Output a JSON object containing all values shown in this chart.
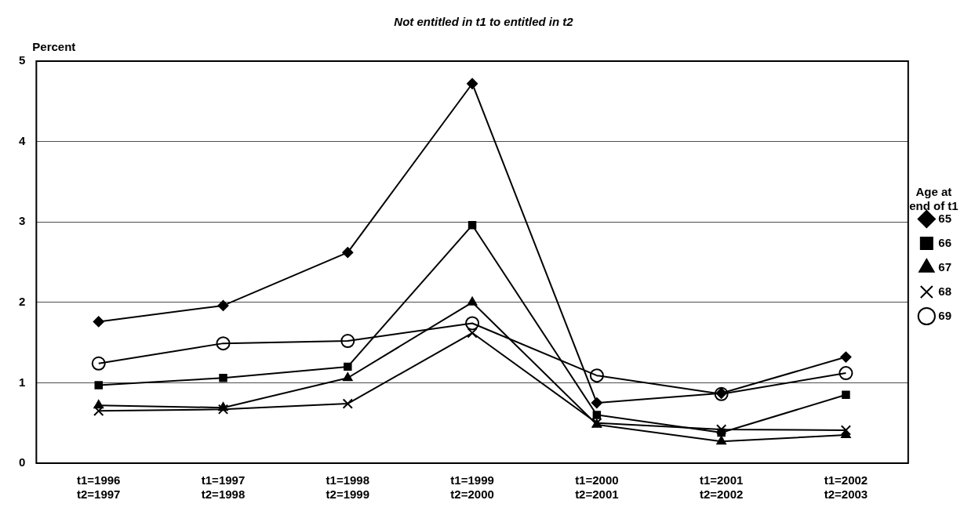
{
  "chart_data": {
    "type": "line",
    "title": "Not entitled in t1 to entitled in t2",
    "ylabel": "Percent",
    "legend_title": "Age at\nend of t1",
    "categories": [
      "t1=1996\nt2=1997",
      "t1=1997\nt2=1998",
      "t1=1998\nt2=1999",
      "t1=1999\nt2=2000",
      "t1=2000\nt2=2001",
      "t1=2001\nt2=2002",
      "t1=2002\nt2=2003"
    ],
    "series": [
      {
        "name": "65",
        "color": "#000000",
        "marker": "diamond",
        "values": [
          1.76,
          1.96,
          2.62,
          4.72,
          0.75,
          0.87,
          1.32
        ]
      },
      {
        "name": "66",
        "color": "#000000",
        "marker": "square",
        "values": [
          0.97,
          1.06,
          1.2,
          2.96,
          0.6,
          0.38,
          0.85
        ]
      },
      {
        "name": "67",
        "color": "#000000",
        "marker": "triangle",
        "values": [
          0.72,
          0.69,
          1.06,
          2.0,
          0.48,
          0.27,
          0.35
        ]
      },
      {
        "name": "68",
        "color": "#000000",
        "marker": "cross",
        "values": [
          0.65,
          0.67,
          0.74,
          1.62,
          0.5,
          0.42,
          0.41
        ]
      },
      {
        "name": "69",
        "color": "#000000",
        "marker": "circle",
        "values": [
          1.24,
          1.49,
          1.52,
          1.74,
          1.09,
          0.86,
          1.12
        ]
      }
    ],
    "ylim": [
      0,
      5
    ],
    "yticks": [
      0,
      1,
      2,
      3,
      4,
      5
    ],
    "grid": "y",
    "legend": "right",
    "line_style": "solid"
  }
}
